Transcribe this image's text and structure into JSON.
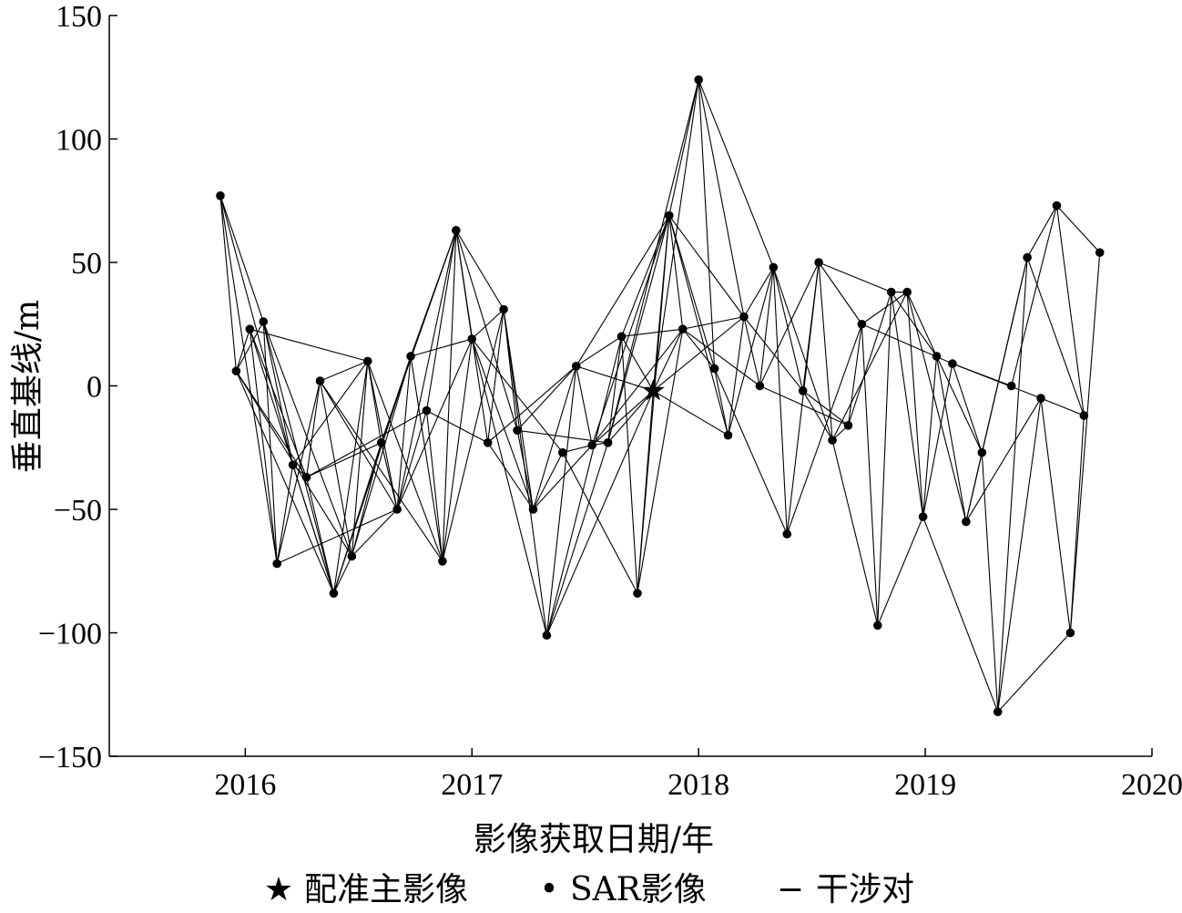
{
  "chart_data": {
    "type": "scatter",
    "xlabel": "影像获取日期/年",
    "ylabel": "垂直基线/m",
    "xlim": [
      2015.4,
      2020
    ],
    "ylim": [
      -150,
      150
    ],
    "xticks": [
      2016,
      2017,
      2018,
      2019,
      2020
    ],
    "yticks": [
      -150,
      -100,
      -50,
      0,
      50,
      100,
      150
    ],
    "ytick_labels": [
      "−150",
      "−100",
      "−50",
      "0",
      "50",
      "100",
      "150"
    ],
    "grid": false,
    "legend_position": "bottom",
    "legend": [
      {
        "marker": "star",
        "symbol": "★",
        "label": "配准主影像"
      },
      {
        "marker": "dot",
        "symbol": "•",
        "label": "SAR影像"
      },
      {
        "marker": "line",
        "symbol": "−",
        "label": "干涉对"
      }
    ],
    "master": {
      "x": 2017.8,
      "y": -2
    },
    "points": [
      [
        2015.89,
        77
      ],
      [
        2015.96,
        6
      ],
      [
        2016.02,
        23
      ],
      [
        2016.08,
        26
      ],
      [
        2016.14,
        -72
      ],
      [
        2016.21,
        -32
      ],
      [
        2016.27,
        -37
      ],
      [
        2016.33,
        2
      ],
      [
        2016.39,
        -84
      ],
      [
        2016.47,
        -69
      ],
      [
        2016.54,
        10
      ],
      [
        2016.6,
        -23
      ],
      [
        2016.67,
        -50
      ],
      [
        2016.73,
        12
      ],
      [
        2016.8,
        -10
      ],
      [
        2016.87,
        -71
      ],
      [
        2016.93,
        63
      ],
      [
        2017.0,
        19
      ],
      [
        2017.07,
        -23
      ],
      [
        2017.14,
        31
      ],
      [
        2017.2,
        -18
      ],
      [
        2017.27,
        -50
      ],
      [
        2017.33,
        -101
      ],
      [
        2017.4,
        -27
      ],
      [
        2017.46,
        8
      ],
      [
        2017.53,
        -24
      ],
      [
        2017.6,
        -23
      ],
      [
        2017.66,
        20
      ],
      [
        2017.73,
        -84
      ],
      [
        2017.87,
        69
      ],
      [
        2017.93,
        23
      ],
      [
        2018.0,
        124
      ],
      [
        2018.07,
        7
      ],
      [
        2018.13,
        -20
      ],
      [
        2018.2,
        28
      ],
      [
        2018.27,
        0
      ],
      [
        2018.33,
        48
      ],
      [
        2018.39,
        -60
      ],
      [
        2018.46,
        -2
      ],
      [
        2018.53,
        50
      ],
      [
        2018.59,
        -22
      ],
      [
        2018.66,
        -16
      ],
      [
        2018.72,
        25
      ],
      [
        2018.79,
        -97
      ],
      [
        2018.85,
        38
      ],
      [
        2018.92,
        38
      ],
      [
        2018.99,
        -53
      ],
      [
        2019.05,
        12
      ],
      [
        2019.12,
        9
      ],
      [
        2019.18,
        -55
      ],
      [
        2019.25,
        -27
      ],
      [
        2019.32,
        -132
      ],
      [
        2019.38,
        0
      ],
      [
        2019.45,
        52
      ],
      [
        2019.51,
        -5
      ],
      [
        2019.58,
        73
      ],
      [
        2019.64,
        -100
      ],
      [
        2019.7,
        -12
      ],
      [
        2019.77,
        54
      ]
    ],
    "pairs": [
      [
        0,
        1
      ],
      [
        0,
        3
      ],
      [
        0,
        5
      ],
      [
        0,
        4
      ],
      [
        1,
        2
      ],
      [
        1,
        3
      ],
      [
        1,
        6
      ],
      [
        1,
        8
      ],
      [
        1,
        9
      ],
      [
        2,
        4
      ],
      [
        2,
        6
      ],
      [
        2,
        8
      ],
      [
        2,
        10
      ],
      [
        3,
        4
      ],
      [
        3,
        5
      ],
      [
        3,
        8
      ],
      [
        3,
        9
      ],
      [
        4,
        5
      ],
      [
        4,
        7
      ],
      [
        4,
        12
      ],
      [
        5,
        6
      ],
      [
        5,
        8
      ],
      [
        5,
        10
      ],
      [
        6,
        7
      ],
      [
        6,
        8
      ],
      [
        6,
        11
      ],
      [
        6,
        14
      ],
      [
        7,
        9
      ],
      [
        7,
        10
      ],
      [
        7,
        12
      ],
      [
        7,
        15
      ],
      [
        8,
        9
      ],
      [
        8,
        10
      ],
      [
        8,
        11
      ],
      [
        8,
        13
      ],
      [
        9,
        10
      ],
      [
        9,
        11
      ],
      [
        9,
        12
      ],
      [
        9,
        13
      ],
      [
        10,
        11
      ],
      [
        10,
        12
      ],
      [
        10,
        15
      ],
      [
        11,
        12
      ],
      [
        11,
        13
      ],
      [
        11,
        16
      ],
      [
        12,
        13
      ],
      [
        12,
        14
      ],
      [
        12,
        16
      ],
      [
        12,
        17
      ],
      [
        13,
        15
      ],
      [
        13,
        16
      ],
      [
        13,
        17
      ],
      [
        14,
        15
      ],
      [
        14,
        16
      ],
      [
        14,
        18
      ],
      [
        15,
        16
      ],
      [
        15,
        17
      ],
      [
        15,
        19
      ],
      [
        16,
        17
      ],
      [
        16,
        18
      ],
      [
        16,
        19
      ],
      [
        16,
        20
      ],
      [
        17,
        19
      ],
      [
        17,
        21
      ],
      [
        17,
        22
      ],
      [
        17,
        23
      ],
      [
        18,
        19
      ],
      [
        18,
        21
      ],
      [
        18,
        24
      ],
      [
        19,
        20
      ],
      [
        19,
        21
      ],
      [
        19,
        22
      ],
      [
        20,
        21
      ],
      [
        20,
        24
      ],
      [
        20,
        26
      ],
      [
        21,
        24
      ],
      [
        21,
        25
      ],
      [
        21,
        23
      ],
      [
        22,
        24
      ],
      [
        22,
        26
      ],
      [
        22,
        27
      ],
      [
        23,
        25
      ],
      [
        23,
        28
      ],
      [
        24,
        25
      ],
      [
        24,
        27
      ],
      [
        24,
        29
      ],
      [
        25,
        26
      ],
      [
        25,
        29
      ],
      [
        25,
        30
      ],
      [
        26,
        27
      ],
      [
        26,
        29
      ],
      [
        26,
        31
      ],
      [
        27,
        28
      ],
      [
        27,
        29
      ],
      [
        27,
        30
      ],
      [
        28,
        29
      ],
      [
        28,
        30
      ],
      [
        29,
        30
      ],
      [
        29,
        31
      ],
      [
        29,
        32
      ],
      [
        29,
        33
      ],
      [
        29,
        34
      ],
      [
        30,
        32
      ],
      [
        30,
        34
      ],
      [
        30,
        35
      ],
      [
        31,
        32
      ],
      [
        31,
        34
      ],
      [
        31,
        36
      ],
      [
        32,
        33
      ],
      [
        32,
        37
      ],
      [
        33,
        34
      ],
      [
        33,
        36
      ],
      [
        34,
        35
      ],
      [
        34,
        36
      ],
      [
        34,
        38
      ],
      [
        35,
        36
      ],
      [
        35,
        39
      ],
      [
        35,
        41
      ],
      [
        36,
        37
      ],
      [
        36,
        38
      ],
      [
        36,
        40
      ],
      [
        37,
        39
      ],
      [
        37,
        42
      ],
      [
        38,
        39
      ],
      [
        38,
        40
      ],
      [
        38,
        41
      ],
      [
        39,
        40
      ],
      [
        39,
        44
      ],
      [
        39,
        42
      ],
      [
        40,
        41
      ],
      [
        40,
        43
      ],
      [
        40,
        45
      ],
      [
        41,
        42
      ],
      [
        41,
        44
      ],
      [
        42,
        43
      ],
      [
        42,
        45
      ],
      [
        42,
        48
      ],
      [
        43,
        44
      ],
      [
        43,
        46
      ],
      [
        44,
        45
      ],
      [
        44,
        46
      ],
      [
        44,
        47
      ],
      [
        45,
        46
      ],
      [
        45,
        49
      ],
      [
        45,
        47
      ],
      [
        46,
        47
      ],
      [
        46,
        48
      ],
      [
        46,
        51
      ],
      [
        47,
        49
      ],
      [
        47,
        50
      ],
      [
        48,
        50
      ],
      [
        48,
        52
      ],
      [
        48,
        54
      ],
      [
        49,
        50
      ],
      [
        49,
        53
      ],
      [
        49,
        54
      ],
      [
        50,
        51
      ],
      [
        50,
        53
      ],
      [
        51,
        53
      ],
      [
        51,
        54
      ],
      [
        52,
        55
      ],
      [
        53,
        55
      ],
      [
        53,
        57
      ],
      [
        54,
        56
      ],
      [
        54,
        57
      ],
      [
        55,
        57
      ],
      [
        55,
        58
      ],
      [
        56,
        57
      ],
      [
        56,
        58
      ],
      [
        51,
        56
      ]
    ]
  }
}
